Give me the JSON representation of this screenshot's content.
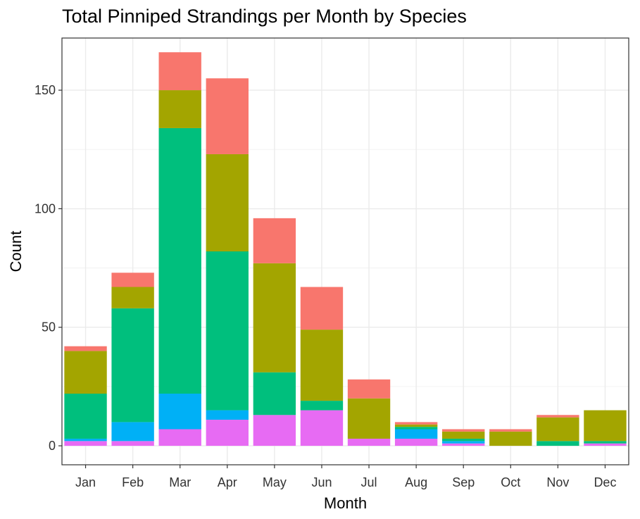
{
  "chart_data": {
    "type": "bar",
    "stacked": true,
    "title": "Total Pinniped Strandings per Month by Species",
    "xlabel": "Month",
    "ylabel": "Count",
    "categories": [
      "Jan",
      "Feb",
      "Mar",
      "Apr",
      "May",
      "Jun",
      "Jul",
      "Aug",
      "Sep",
      "Oct",
      "Nov",
      "Dec"
    ],
    "ylim": [
      -8,
      172
    ],
    "yticks": [
      0,
      50,
      100,
      150
    ],
    "grid": true,
    "legend": "none",
    "series": [
      {
        "color": "#E76BF3",
        "values": [
          2,
          2,
          7,
          11,
          13,
          15,
          3,
          3,
          1,
          0,
          0,
          1
        ]
      },
      {
        "color": "#00B0F6",
        "values": [
          1,
          8,
          15,
          4,
          0,
          0,
          0,
          4,
          1,
          0,
          0,
          0
        ]
      },
      {
        "color": "#00BF7D",
        "values": [
          19,
          48,
          112,
          67,
          18,
          4,
          0,
          1,
          1,
          0,
          2,
          1
        ]
      },
      {
        "color": "#A3A500",
        "values": [
          18,
          9,
          16,
          41,
          46,
          30,
          17,
          1,
          3,
          6,
          10,
          13
        ]
      },
      {
        "color": "#F8766D",
        "values": [
          2,
          6,
          16,
          32,
          19,
          18,
          8,
          1,
          1,
          1,
          1,
          0
        ]
      }
    ]
  }
}
